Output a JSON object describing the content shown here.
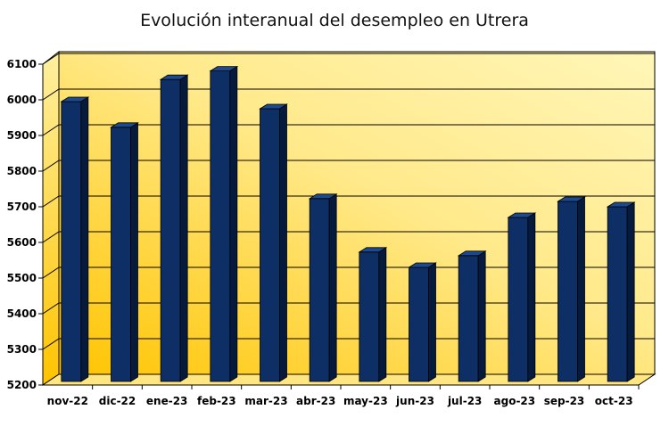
{
  "chart_data": {
    "type": "bar",
    "title": "Evolución interanual del desempleo en Utrera",
    "xlabel": "",
    "ylabel": "",
    "categories": [
      "nov-22",
      "dic-22",
      "ene-23",
      "feb-23",
      "mar-23",
      "abr-23",
      "may-23",
      "jun-23",
      "jul-23",
      "ago-23",
      "sep-23",
      "oct-23"
    ],
    "series": [
      {
        "values": [
          5995,
          5923,
          6057,
          6081,
          5975,
          5723,
          5573,
          5530,
          5563,
          5670,
          5715,
          5700
        ]
      }
    ],
    "ylim": [
      5200,
      6100
    ],
    "yticks": [
      5200,
      5300,
      5400,
      5500,
      5600,
      5700,
      5800,
      5900,
      6000,
      6100
    ],
    "grid": true,
    "legend": "none",
    "colors": {
      "bar": "#0d2f66",
      "bar_side": "#061a3d",
      "bar_top": "#1d4a8e",
      "wall_light": "#fff6b8",
      "wall_dark": "#ffc400"
    }
  }
}
